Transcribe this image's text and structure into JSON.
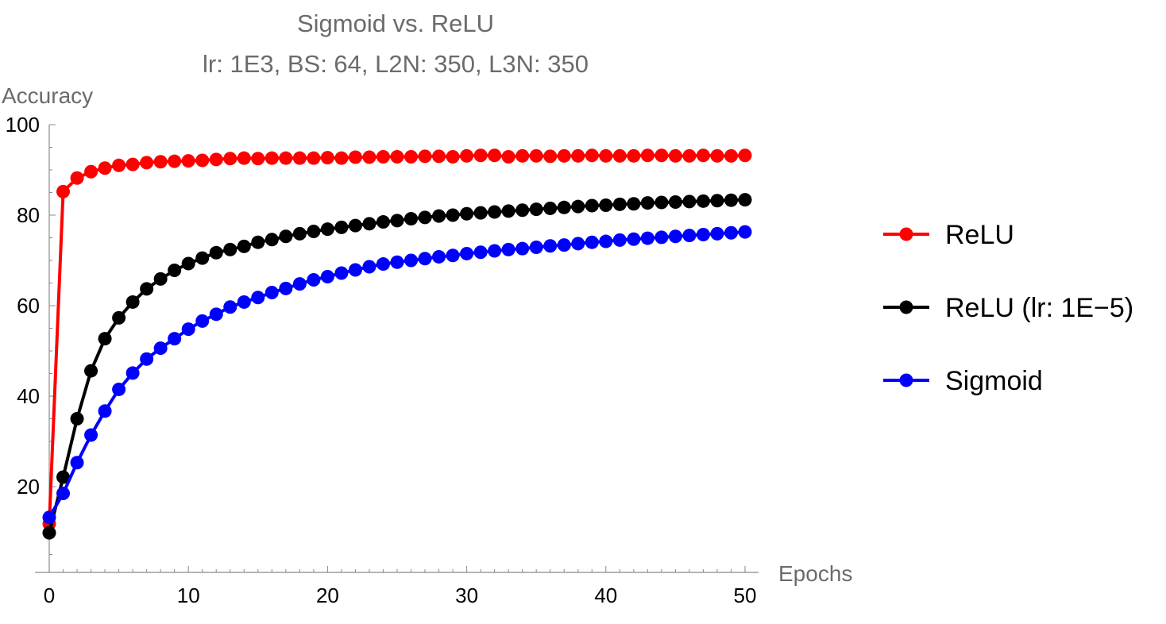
{
  "chart_data": {
    "type": "line",
    "title": "Sigmoid vs. ReLU",
    "subtitle": "lr: 1E3, BS: 64, L2N: 350, L3N: 350",
    "xlabel": "Epochs",
    "ylabel": "Accuracy",
    "xlim": [
      0,
      50
    ],
    "ylim": [
      0,
      100
    ],
    "x_ticks": [
      0,
      10,
      20,
      30,
      40,
      50
    ],
    "y_ticks": [
      20,
      40,
      60,
      80,
      100
    ],
    "grid": false,
    "legend_position": "right",
    "x": [
      0,
      1,
      2,
      3,
      4,
      5,
      6,
      7,
      8,
      9,
      10,
      11,
      12,
      13,
      14,
      15,
      16,
      17,
      18,
      19,
      20,
      21,
      22,
      23,
      24,
      25,
      26,
      27,
      28,
      29,
      30,
      31,
      32,
      33,
      34,
      35,
      36,
      37,
      38,
      39,
      40,
      41,
      42,
      43,
      44,
      45,
      46,
      47,
      48,
      49,
      50
    ],
    "series": [
      {
        "name": "ReLU",
        "color": "#ff0000",
        "values": [
          11.8,
          85.2,
          88.2,
          89.6,
          90.4,
          91.0,
          91.2,
          91.6,
          91.8,
          91.9,
          92.0,
          92.1,
          92.3,
          92.5,
          92.6,
          92.5,
          92.6,
          92.6,
          92.6,
          92.6,
          92.7,
          92.6,
          92.8,
          92.8,
          92.9,
          92.9,
          92.9,
          93.0,
          93.0,
          92.9,
          93.1,
          93.2,
          93.2,
          92.9,
          93.1,
          93.1,
          93.0,
          93.1,
          93.1,
          93.2,
          93.1,
          93.1,
          93.1,
          93.2,
          93.2,
          93.1,
          93.1,
          93.2,
          93.1,
          93.1,
          93.2
        ]
      },
      {
        "name": "ReLU (lr: 1E−5)",
        "color": "#000000",
        "values": [
          9.8,
          22.1,
          35.0,
          45.6,
          52.7,
          57.3,
          60.8,
          63.7,
          65.9,
          67.8,
          69.3,
          70.5,
          71.7,
          72.4,
          73.1,
          74.0,
          74.6,
          75.3,
          75.9,
          76.4,
          76.9,
          77.3,
          77.7,
          78.1,
          78.5,
          78.8,
          79.2,
          79.5,
          79.8,
          80.0,
          80.3,
          80.5,
          80.7,
          80.9,
          81.1,
          81.3,
          81.5,
          81.7,
          81.9,
          82.1,
          82.2,
          82.4,
          82.5,
          82.7,
          82.8,
          82.9,
          83.0,
          83.1,
          83.2,
          83.3,
          83.4
        ]
      },
      {
        "name": "Sigmoid",
        "color": "#0000ff",
        "values": [
          13.2,
          18.5,
          25.3,
          31.4,
          36.7,
          41.5,
          45.1,
          48.2,
          50.6,
          52.7,
          54.8,
          56.6,
          58.1,
          59.7,
          60.8,
          61.8,
          62.9,
          63.8,
          64.8,
          65.7,
          66.4,
          67.2,
          67.9,
          68.6,
          69.2,
          69.6,
          70.0,
          70.4,
          70.8,
          71.1,
          71.5,
          71.8,
          72.1,
          72.4,
          72.6,
          72.9,
          73.2,
          73.4,
          73.7,
          74.0,
          74.2,
          74.5,
          74.7,
          74.9,
          75.1,
          75.3,
          75.5,
          75.7,
          75.9,
          76.1,
          76.3
        ]
      }
    ]
  }
}
